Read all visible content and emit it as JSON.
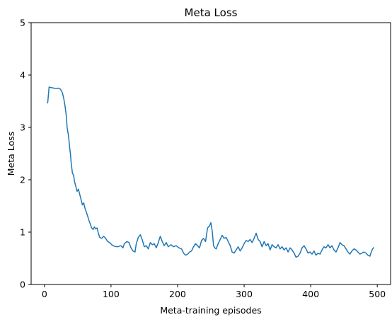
{
  "chart_data": {
    "type": "line",
    "title": "Meta Loss",
    "xlabel": "Meta-training episodes",
    "ylabel": "Meta Loss",
    "xlim": [
      -20,
      520
    ],
    "ylim": [
      0,
      5
    ],
    "xticks": [
      0,
      100,
      200,
      300,
      400,
      500
    ],
    "yticks": [
      0,
      1,
      2,
      3,
      4,
      5
    ],
    "grid": false,
    "series": [
      {
        "color": "#1f77b4",
        "points": [
          [
            4,
            3.46
          ],
          [
            5,
            3.48
          ],
          [
            7,
            3.77
          ],
          [
            10,
            3.76
          ],
          [
            14,
            3.75
          ],
          [
            18,
            3.74
          ],
          [
            21,
            3.75
          ],
          [
            24,
            3.73
          ],
          [
            27,
            3.66
          ],
          [
            29,
            3.55
          ],
          [
            31,
            3.4
          ],
          [
            33,
            3.2
          ],
          [
            34,
            3.0
          ],
          [
            36,
            2.85
          ],
          [
            38,
            2.6
          ],
          [
            39,
            2.5
          ],
          [
            40,
            2.35
          ],
          [
            42,
            2.13
          ],
          [
            44,
            2.08
          ],
          [
            45,
            1.98
          ],
          [
            47,
            1.88
          ],
          [
            49,
            1.78
          ],
          [
            51,
            1.82
          ],
          [
            53,
            1.72
          ],
          [
            55,
            1.62
          ],
          [
            57,
            1.52
          ],
          [
            59,
            1.56
          ],
          [
            61,
            1.45
          ],
          [
            63,
            1.38
          ],
          [
            65,
            1.3
          ],
          [
            67,
            1.22
          ],
          [
            69,
            1.15
          ],
          [
            71,
            1.08
          ],
          [
            73,
            1.05
          ],
          [
            75,
            1.1
          ],
          [
            77,
            1.06
          ],
          [
            79,
            1.08
          ],
          [
            81,
            0.98
          ],
          [
            83,
            0.9
          ],
          [
            86,
            0.88
          ],
          [
            89,
            0.92
          ],
          [
            92,
            0.88
          ],
          [
            95,
            0.82
          ],
          [
            98,
            0.8
          ],
          [
            101,
            0.76
          ],
          [
            105,
            0.73
          ],
          [
            110,
            0.72
          ],
          [
            115,
            0.74
          ],
          [
            118,
            0.7
          ],
          [
            120,
            0.78
          ],
          [
            124,
            0.82
          ],
          [
            127,
            0.8
          ],
          [
            130,
            0.7
          ],
          [
            133,
            0.64
          ],
          [
            136,
            0.62
          ],
          [
            138,
            0.78
          ],
          [
            141,
            0.9
          ],
          [
            144,
            0.95
          ],
          [
            147,
            0.85
          ],
          [
            150,
            0.72
          ],
          [
            153,
            0.74
          ],
          [
            156,
            0.68
          ],
          [
            159,
            0.8
          ],
          [
            162,
            0.76
          ],
          [
            165,
            0.78
          ],
          [
            168,
            0.7
          ],
          [
            171,
            0.8
          ],
          [
            174,
            0.92
          ],
          [
            177,
            0.82
          ],
          [
            180,
            0.74
          ],
          [
            183,
            0.8
          ],
          [
            186,
            0.72
          ],
          [
            190,
            0.76
          ],
          [
            194,
            0.72
          ],
          [
            198,
            0.74
          ],
          [
            202,
            0.7
          ],
          [
            206,
            0.68
          ],
          [
            209,
            0.6
          ],
          [
            212,
            0.56
          ],
          [
            215,
            0.58
          ],
          [
            218,
            0.62
          ],
          [
            221,
            0.64
          ],
          [
            224,
            0.72
          ],
          [
            227,
            0.78
          ],
          [
            230,
            0.74
          ],
          [
            233,
            0.7
          ],
          [
            236,
            0.84
          ],
          [
            239,
            0.88
          ],
          [
            242,
            0.82
          ],
          [
            245,
            1.08
          ],
          [
            248,
            1.12
          ],
          [
            250,
            1.18
          ],
          [
            252,
            1.02
          ],
          [
            254,
            0.74
          ],
          [
            256,
            0.7
          ],
          [
            258,
            0.68
          ],
          [
            261,
            0.78
          ],
          [
            264,
            0.86
          ],
          [
            267,
            0.94
          ],
          [
            270,
            0.88
          ],
          [
            273,
            0.9
          ],
          [
            276,
            0.82
          ],
          [
            279,
            0.74
          ],
          [
            282,
            0.62
          ],
          [
            285,
            0.6
          ],
          [
            288,
            0.66
          ],
          [
            291,
            0.72
          ],
          [
            294,
            0.64
          ],
          [
            297,
            0.7
          ],
          [
            300,
            0.78
          ],
          [
            303,
            0.84
          ],
          [
            306,
            0.82
          ],
          [
            309,
            0.86
          ],
          [
            312,
            0.8
          ],
          [
            315,
            0.88
          ],
          [
            318,
            0.98
          ],
          [
            321,
            0.86
          ],
          [
            324,
            0.82
          ],
          [
            327,
            0.72
          ],
          [
            330,
            0.82
          ],
          [
            333,
            0.74
          ],
          [
            336,
            0.78
          ],
          [
            339,
            0.66
          ],
          [
            342,
            0.76
          ],
          [
            345,
            0.72
          ],
          [
            348,
            0.7
          ],
          [
            351,
            0.76
          ],
          [
            354,
            0.68
          ],
          [
            357,
            0.72
          ],
          [
            360,
            0.66
          ],
          [
            363,
            0.7
          ],
          [
            366,
            0.62
          ],
          [
            369,
            0.7
          ],
          [
            372,
            0.66
          ],
          [
            375,
            0.6
          ],
          [
            378,
            0.52
          ],
          [
            381,
            0.54
          ],
          [
            384,
            0.6
          ],
          [
            387,
            0.7
          ],
          [
            390,
            0.74
          ],
          [
            393,
            0.68
          ],
          [
            396,
            0.6
          ],
          [
            399,
            0.62
          ],
          [
            402,
            0.58
          ],
          [
            405,
            0.64
          ],
          [
            408,
            0.56
          ],
          [
            411,
            0.6
          ],
          [
            414,
            0.58
          ],
          [
            417,
            0.66
          ],
          [
            420,
            0.72
          ],
          [
            423,
            0.7
          ],
          [
            426,
            0.76
          ],
          [
            429,
            0.7
          ],
          [
            432,
            0.74
          ],
          [
            435,
            0.66
          ],
          [
            438,
            0.62
          ],
          [
            441,
            0.7
          ],
          [
            444,
            0.8
          ],
          [
            447,
            0.76
          ],
          [
            450,
            0.74
          ],
          [
            453,
            0.68
          ],
          [
            456,
            0.62
          ],
          [
            459,
            0.58
          ],
          [
            462,
            0.64
          ],
          [
            465,
            0.68
          ],
          [
            468,
            0.66
          ],
          [
            471,
            0.62
          ],
          [
            474,
            0.58
          ],
          [
            477,
            0.6
          ],
          [
            480,
            0.62
          ],
          [
            483,
            0.6
          ],
          [
            486,
            0.56
          ],
          [
            489,
            0.54
          ],
          [
            491,
            0.62
          ],
          [
            493,
            0.68
          ],
          [
            495,
            0.71
          ]
        ]
      }
    ]
  }
}
